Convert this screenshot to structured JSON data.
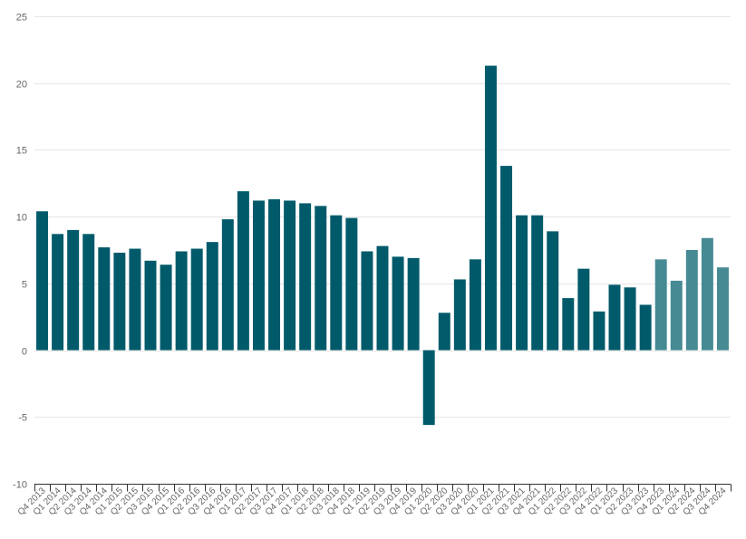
{
  "chart_data": {
    "type": "bar",
    "title": "",
    "xlabel": "",
    "ylabel": "",
    "ylim": [
      -10,
      25
    ],
    "yticks": [
      -10,
      -5,
      0,
      5,
      10,
      15,
      20,
      25
    ],
    "grid": true,
    "colors": {
      "actual": "#005a6a",
      "projected": "#468a93",
      "grid": "#e6e6e6",
      "axis": "#333333",
      "tick_label": "#666666"
    },
    "categories": [
      "Q4 2013",
      "Q1 2014",
      "Q2 2014",
      "Q3 2014",
      "Q4 2014",
      "Q1 2015",
      "Q2 2015",
      "Q3 2015",
      "Q4 2015",
      "Q1 2016",
      "Q2 2016",
      "Q3 2016",
      "Q4 2016",
      "Q1 2017",
      "Q2 2017",
      "Q3 2017",
      "Q4 2017",
      "Q1 2018",
      "Q2 2018",
      "Q3 2018",
      "Q4 2018",
      "Q1 2019",
      "Q2 2019",
      "Q3 2019",
      "Q4 2019",
      "Q1 2020",
      "Q2 2020",
      "Q3 2020",
      "Q4 2020",
      "Q1 2021",
      "Q2 2021",
      "Q3 2021",
      "Q4 2021",
      "Q1 2022",
      "Q2 2022",
      "Q3 2022",
      "Q4 2022",
      "Q1 2023",
      "Q2 2023",
      "Q3 2023",
      "Q4 2023",
      "Q1 2024",
      "Q2 2024",
      "Q3 2024",
      "Q4 2024"
    ],
    "values": [
      10.4,
      8.7,
      9.0,
      8.7,
      7.7,
      7.3,
      7.6,
      6.7,
      6.4,
      7.4,
      7.6,
      8.1,
      9.8,
      11.9,
      11.2,
      11.3,
      11.2,
      11.0,
      10.8,
      10.1,
      9.9,
      7.4,
      7.8,
      7.0,
      6.9,
      -5.6,
      2.8,
      5.3,
      6.8,
      21.3,
      13.8,
      10.1,
      10.1,
      8.9,
      3.9,
      6.1,
      2.9,
      4.9,
      4.7,
      3.4,
      6.8,
      5.2,
      7.5,
      8.4,
      6.2
    ],
    "projected_flags": [
      false,
      false,
      false,
      false,
      false,
      false,
      false,
      false,
      false,
      false,
      false,
      false,
      false,
      false,
      false,
      false,
      false,
      false,
      false,
      false,
      false,
      false,
      false,
      false,
      false,
      false,
      false,
      false,
      false,
      false,
      false,
      false,
      false,
      false,
      false,
      false,
      false,
      false,
      false,
      false,
      true,
      true,
      true,
      true,
      true
    ]
  }
}
